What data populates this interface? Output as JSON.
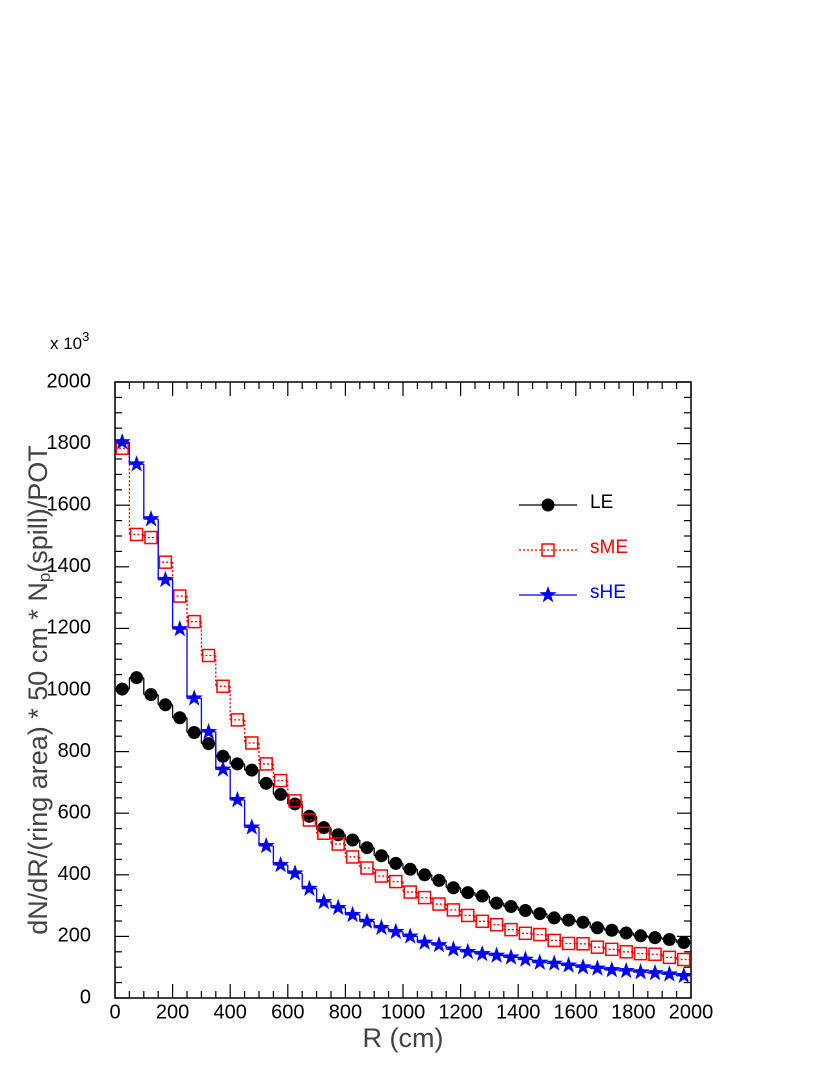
{
  "chart_data": {
    "type": "histogram",
    "multiplier": "x 10",
    "multiplier_exp": "3",
    "ylabel_parts": [
      "dN/dR/(ring area) * 50 cm * N",
      "p",
      "(spill)/POT"
    ],
    "xlabel": "R (cm)",
    "bins": [
      0,
      50,
      100,
      150,
      200,
      250,
      300,
      350,
      400,
      450,
      500,
      550,
      600,
      650,
      700,
      750,
      800,
      850,
      900,
      950,
      1000,
      1050,
      1100,
      1150,
      1200,
      1250,
      1300,
      1350,
      1400,
      1450,
      1500,
      1550,
      1600,
      1650,
      1700,
      1750,
      1800,
      1850,
      1900,
      1950,
      2000
    ],
    "xlim": [
      0,
      2000
    ],
    "xticks": [
      0,
      200,
      400,
      600,
      800,
      1000,
      1200,
      1400,
      1600,
      1800,
      2000
    ],
    "ylim": [
      0,
      2000
    ],
    "yticks": [
      0,
      200,
      400,
      600,
      800,
      1000,
      1200,
      1400,
      1600,
      1800,
      2000
    ],
    "legend": "top-right",
    "series": [
      {
        "name": "LE",
        "color": "#000000",
        "marker": "circle",
        "line": "solid",
        "values": [
          1003,
          1040,
          985,
          952,
          910,
          862,
          826,
          785,
          760,
          740,
          697,
          661,
          630,
          590,
          553,
          530,
          513,
          488,
          462,
          437,
          418,
          400,
          382,
          358,
          342,
          331,
          308,
          297,
          284,
          274,
          260,
          253,
          246,
          228,
          220,
          211,
          202,
          196,
          190,
          180
        ]
      },
      {
        "name": "sME",
        "color": "#ff0000",
        "marker": "open-square",
        "line": "dotted",
        "values": [
          1785,
          1505,
          1495,
          1415,
          1305,
          1222,
          1112,
          1012,
          903,
          828,
          760,
          706,
          640,
          578,
          535,
          500,
          458,
          422,
          396,
          378,
          344,
          326,
          305,
          286,
          268,
          249,
          238,
          222,
          210,
          206,
          187,
          177,
          176,
          165,
          158,
          150,
          144,
          142,
          132,
          125
        ]
      },
      {
        "name": "sHE",
        "color": "#0000ff",
        "marker": "star",
        "line": "solid",
        "values": [
          1805,
          1733,
          1555,
          1358,
          1198,
          973,
          864,
          742,
          643,
          554,
          494,
          432,
          405,
          355,
          312,
          293,
          270,
          248,
          228,
          215,
          200,
          180,
          172,
          158,
          150,
          143,
          138,
          132,
          125,
          115,
          112,
          106,
          100,
          96,
          91,
          88,
          84,
          81,
          77,
          72
        ]
      }
    ]
  }
}
